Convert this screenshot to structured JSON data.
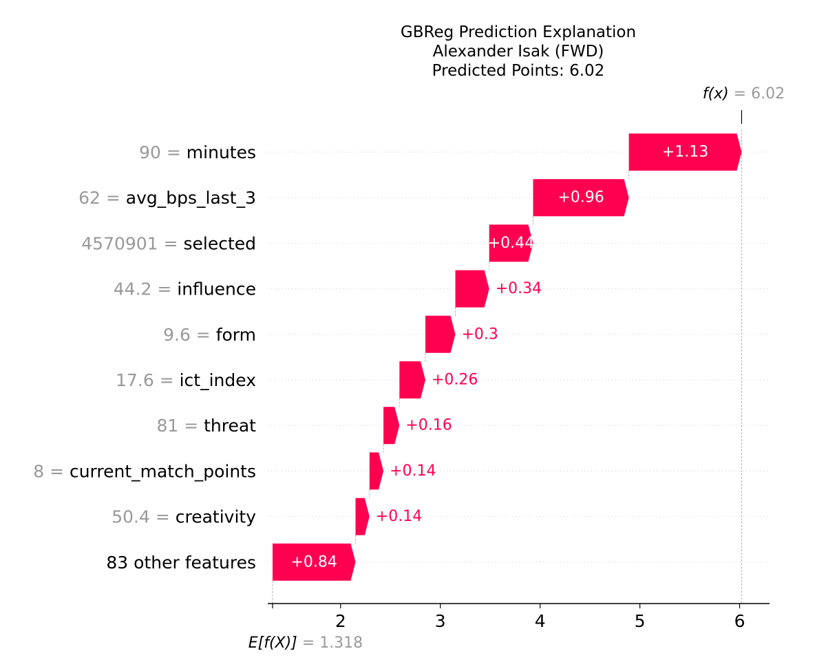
{
  "title_lines": [
    "GBReg Prediction Explanation",
    "Alexander Isak (FWD)",
    "Predicted Points: 6.02"
  ],
  "fx_label": {
    "name": "f(x)",
    "eq": "= 6.02"
  },
  "ex_label": {
    "name": "E[f(X)]",
    "eq": "= 1.318"
  },
  "colors": {
    "positive": "#ff0051",
    "value_text": "#999999",
    "label_text": "#000000",
    "inside_label": "#ffffff"
  },
  "chart_data": {
    "type": "waterfall",
    "base_value": 1.318,
    "final_value": 6.02,
    "xlim": [
      1.27,
      6.3
    ],
    "xticks": [
      2,
      3,
      4,
      5,
      6
    ],
    "tick_labels": [
      "2",
      "3",
      "4",
      "5",
      "6"
    ],
    "features": [
      {
        "value": "90",
        "name": "minutes",
        "contribution": 1.13,
        "label": "+1.13"
      },
      {
        "value": "62",
        "name": "avg_bps_last_3",
        "contribution": 0.96,
        "label": "+0.96"
      },
      {
        "value": "4570901",
        "name": "selected",
        "contribution": 0.44,
        "label": "+0.44"
      },
      {
        "value": "44.2",
        "name": "influence",
        "contribution": 0.34,
        "label": "+0.34"
      },
      {
        "value": "9.6",
        "name": "form",
        "contribution": 0.3,
        "label": "+0.3"
      },
      {
        "value": "17.6",
        "name": "ict_index",
        "contribution": 0.26,
        "label": "+0.26"
      },
      {
        "value": "81",
        "name": "threat",
        "contribution": 0.16,
        "label": "+0.16"
      },
      {
        "value": "8",
        "name": "current_match_points",
        "contribution": 0.14,
        "label": "+0.14"
      },
      {
        "value": "50.4",
        "name": "creativity",
        "contribution": 0.14,
        "label": "+0.14"
      },
      {
        "value": "",
        "name": "83 other features",
        "contribution": 0.84,
        "label": "+0.84"
      }
    ]
  }
}
